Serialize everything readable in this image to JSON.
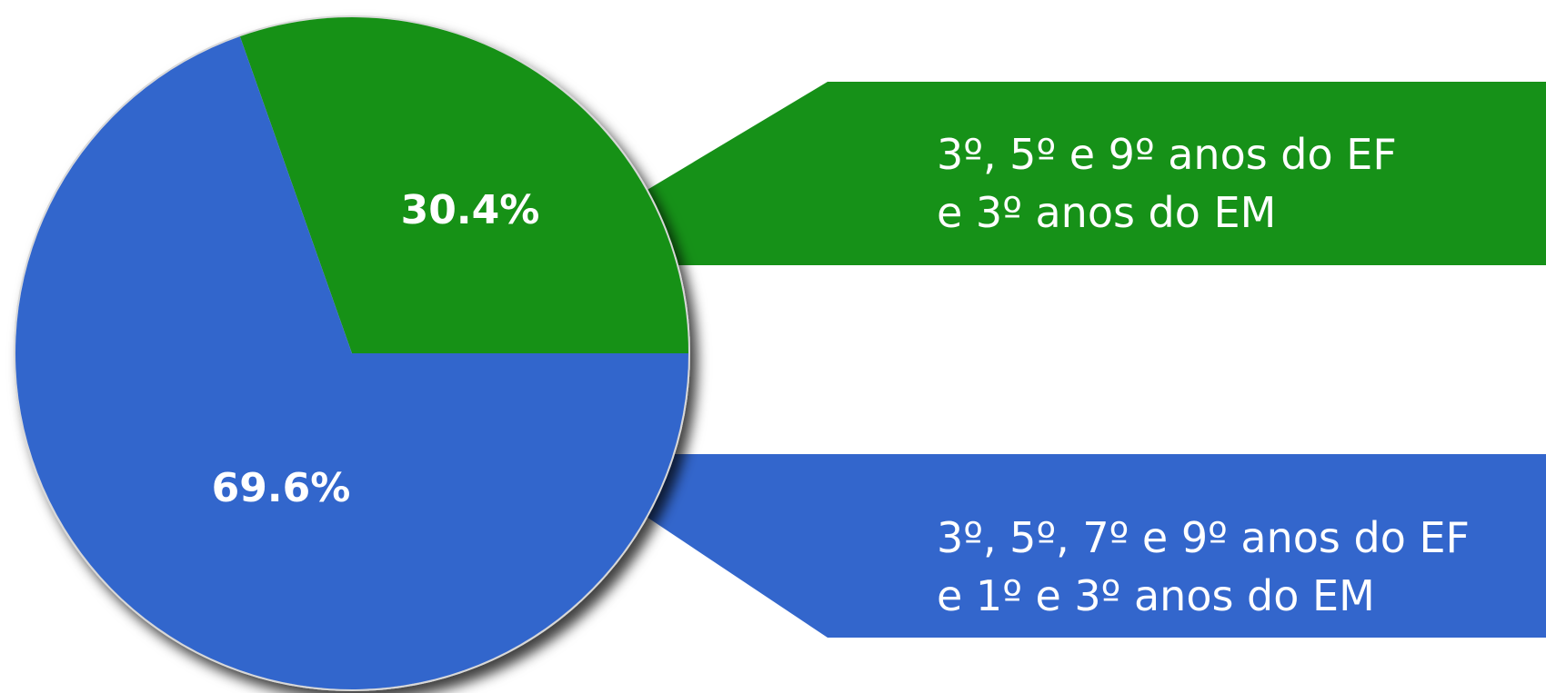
{
  "chart_data": {
    "type": "pie",
    "title": "",
    "slices": [
      {
        "value_label": "30.4%",
        "value": 30.4,
        "color": "#169118",
        "legend_lines": [
          "3º, 5º e 9º anos do EF",
          "e 3º anos do EM"
        ]
      },
      {
        "value_label": "69.6%",
        "value": 69.6,
        "color": "#3366cc",
        "legend_lines": [
          "3º, 5º, 7º e 9º anos do EF",
          "e 1º e 3º anos do EM"
        ]
      }
    ]
  }
}
